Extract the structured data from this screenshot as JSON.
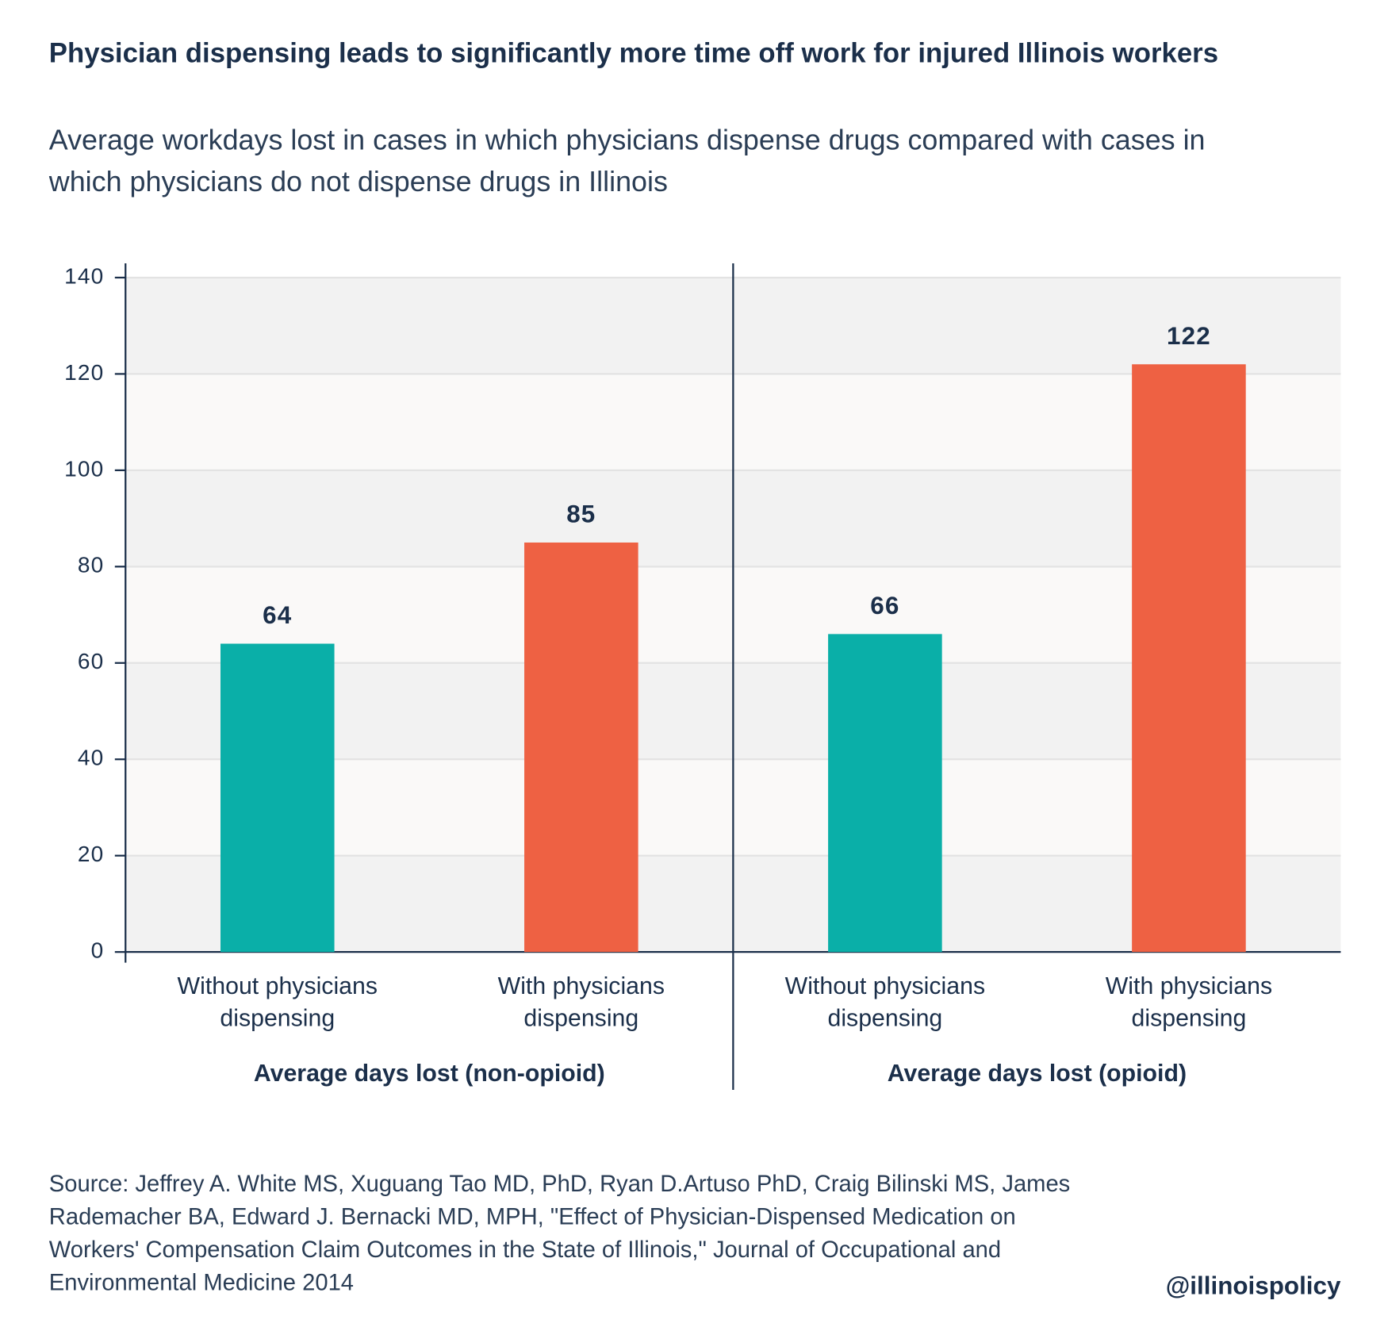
{
  "chart_data": {
    "type": "grouped-bar",
    "title": "Physician dispensing leads to significantly more time off work for injured Illinois workers",
    "subtitle": "Average workdays lost in cases in which physicians dispense drugs compared with cases in which physicians do not dispense drugs in Illinois",
    "groups": [
      {
        "name": "Average days lost (non-opioid)",
        "categories": [
          "Without physicians dispensing",
          "With physicians dispensing"
        ],
        "values": [
          64,
          85
        ],
        "colors": [
          "#0aafa8",
          "#ee6143"
        ]
      },
      {
        "name": "Average days lost (opioid)",
        "categories": [
          "Without physicians dispensing",
          "With physicians dispensing"
        ],
        "values": [
          66,
          122
        ],
        "colors": [
          "#0aafa8",
          "#ee6143"
        ]
      }
    ],
    "ylim": [
      0,
      140
    ],
    "yticks": [
      0,
      20,
      40,
      60,
      80,
      100,
      120,
      140
    ],
    "grid": true,
    "source": "Source: Jeffrey A. White MS, Xuguang Tao MD, PhD, Ryan D.Artuso PhD, Craig Bilinski MS, James Rademacher BA, Edward J. Bernacki MD, MPH, \"Effect of Physician-Dispensed Medication on Workers' Compensation Claim Outcomes in the State of Illinois,\" Journal of Occupational and Environmental Medicine 2014",
    "credit": "@illinoispolicy"
  }
}
